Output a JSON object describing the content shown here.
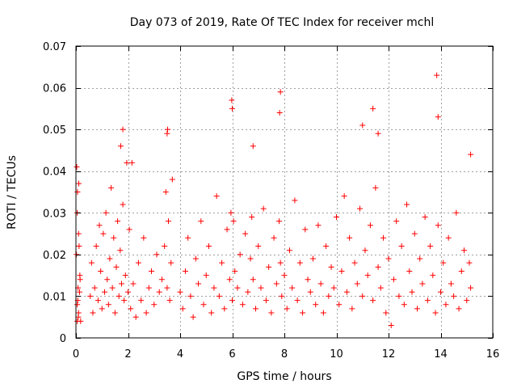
{
  "chart_data": {
    "type": "scatter",
    "title": "Day 073 of 2019, Rate Of TEC Index for receiver mchl",
    "xlabel": "GPS time / hours",
    "ylabel": "ROTI / TECUs",
    "xlim": [
      0,
      16
    ],
    "ylim": [
      0,
      0.07
    ],
    "xticks": [
      0,
      2,
      4,
      6,
      8,
      10,
      12,
      14,
      16
    ],
    "xtick_labels": [
      "0",
      "2",
      "4",
      "6",
      "8",
      "10",
      "12",
      "14",
      "16"
    ],
    "yticks": [
      0,
      0.01,
      0.02,
      0.03,
      0.04,
      0.05,
      0.06,
      0.07
    ],
    "ytick_labels": [
      "0",
      "0.01",
      "0.02",
      "0.03",
      "0.04",
      "0.05",
      "0.06",
      "0.07"
    ],
    "grid": true,
    "marker": "+",
    "marker_color": "#ff0000",
    "series": [
      {
        "name": "ROTI",
        "x": [
          0.05,
          0.08,
          0.12,
          0.15,
          0.1,
          0.05,
          0.18,
          0.03,
          0.07,
          0.11,
          0.14,
          0.02,
          0.09,
          0.16,
          0.06,
          0.55,
          0.6,
          0.65,
          0.72,
          0.78,
          0.85,
          0.9,
          0.95,
          1.0,
          1.05,
          1.1,
          1.15,
          1.2,
          1.25,
          1.3,
          1.35,
          1.4,
          1.45,
          1.5,
          1.55,
          1.6,
          1.65,
          1.7,
          1.75,
          1.8,
          1.85,
          1.9,
          1.95,
          2.0,
          2.05,
          2.1,
          2.2,
          2.3,
          2.4,
          2.5,
          2.6,
          2.7,
          2.8,
          2.9,
          3.0,
          3.1,
          3.2,
          3.3,
          3.4,
          3.45,
          3.5,
          3.55,
          3.6,
          3.65,
          3.7,
          4.0,
          4.1,
          4.2,
          4.3,
          4.4,
          4.5,
          4.6,
          4.7,
          4.8,
          4.9,
          5.0,
          5.1,
          5.2,
          5.3,
          5.4,
          5.5,
          5.6,
          5.7,
          5.8,
          5.9,
          5.95,
          6.0,
          6.05,
          6.1,
          6.2,
          6.3,
          6.4,
          6.5,
          6.6,
          6.7,
          6.75,
          6.8,
          6.9,
          7.0,
          7.1,
          7.2,
          7.3,
          7.4,
          7.5,
          7.6,
          7.7,
          7.8,
          7.85,
          7.9,
          8.0,
          8.1,
          8.2,
          8.3,
          8.4,
          8.5,
          8.6,
          8.7,
          8.8,
          8.9,
          9.0,
          9.1,
          9.2,
          9.3,
          9.4,
          9.5,
          9.6,
          9.7,
          9.8,
          9.9,
          10.0,
          10.1,
          10.2,
          10.3,
          10.4,
          10.5,
          10.6,
          10.7,
          10.8,
          10.9,
          11.0,
          11.1,
          11.2,
          11.3,
          11.4,
          11.5,
          11.6,
          11.7,
          11.8,
          11.9,
          12.0,
          12.1,
          12.2,
          12.3,
          12.4,
          12.5,
          12.6,
          12.7,
          12.8,
          12.9,
          13.0,
          13.1,
          13.2,
          13.3,
          13.4,
          13.5,
          13.6,
          13.7,
          13.8,
          13.9,
          14.0,
          14.1,
          14.2,
          14.3,
          14.4,
          14.5,
          14.6,
          14.7,
          14.8,
          14.9,
          15.0,
          15.1,
          15.15,
          1.8,
          1.72,
          3.52,
          3.5,
          5.98,
          6.0,
          6.8,
          7.85,
          7.82,
          11.0,
          11.4,
          11.6,
          13.85,
          13.9,
          15.15,
          2.15,
          0.05,
          0.1
        ],
        "y": [
          0.008,
          0.012,
          0.022,
          0.015,
          0.006,
          0.03,
          0.004,
          0.041,
          0.009,
          0.037,
          0.011,
          0.02,
          0.005,
          0.014,
          0.035,
          0.01,
          0.018,
          0.006,
          0.012,
          0.022,
          0.009,
          0.027,
          0.016,
          0.007,
          0.025,
          0.011,
          0.03,
          0.014,
          0.008,
          0.019,
          0.036,
          0.012,
          0.024,
          0.006,
          0.017,
          0.028,
          0.01,
          0.021,
          0.013,
          0.032,
          0.009,
          0.015,
          0.042,
          0.011,
          0.026,
          0.007,
          0.013,
          0.005,
          0.018,
          0.009,
          0.024,
          0.006,
          0.012,
          0.016,
          0.008,
          0.02,
          0.011,
          0.014,
          0.022,
          0.035,
          0.012,
          0.028,
          0.009,
          0.018,
          0.038,
          0.011,
          0.007,
          0.016,
          0.024,
          0.01,
          0.005,
          0.019,
          0.013,
          0.028,
          0.008,
          0.015,
          0.022,
          0.006,
          0.012,
          0.034,
          0.01,
          0.018,
          0.007,
          0.026,
          0.014,
          0.03,
          0.009,
          0.028,
          0.016,
          0.012,
          0.02,
          0.008,
          0.025,
          0.011,
          0.019,
          0.029,
          0.014,
          0.007,
          0.022,
          0.012,
          0.031,
          0.009,
          0.017,
          0.006,
          0.024,
          0.013,
          0.028,
          0.018,
          0.01,
          0.015,
          0.007,
          0.021,
          0.012,
          0.033,
          0.009,
          0.018,
          0.006,
          0.026,
          0.014,
          0.011,
          0.019,
          0.008,
          0.027,
          0.013,
          0.006,
          0.022,
          0.01,
          0.017,
          0.012,
          0.029,
          0.008,
          0.016,
          0.034,
          0.011,
          0.024,
          0.007,
          0.018,
          0.013,
          0.031,
          0.01,
          0.021,
          0.015,
          0.027,
          0.009,
          0.036,
          0.017,
          0.012,
          0.024,
          0.006,
          0.019,
          0.003,
          0.014,
          0.028,
          0.01,
          0.022,
          0.008,
          0.032,
          0.016,
          0.011,
          0.025,
          0.007,
          0.019,
          0.013,
          0.029,
          0.009,
          0.022,
          0.015,
          0.006,
          0.027,
          0.011,
          0.018,
          0.008,
          0.024,
          0.013,
          0.01,
          0.03,
          0.007,
          0.016,
          0.021,
          0.009,
          0.018,
          0.012,
          0.05,
          0.046,
          0.05,
          0.049,
          0.057,
          0.055,
          0.046,
          0.059,
          0.054,
          0.051,
          0.055,
          0.049,
          0.063,
          0.053,
          0.044,
          0.042,
          0.004,
          0.025
        ]
      }
    ]
  }
}
